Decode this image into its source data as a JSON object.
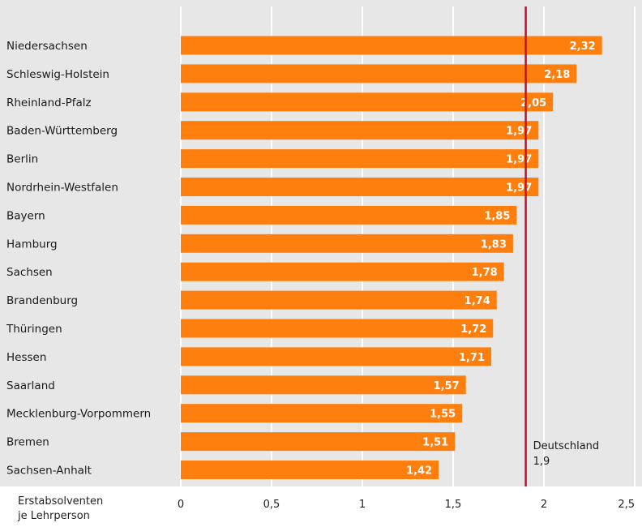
{
  "chart_data": {
    "type": "bar",
    "orientation": "horizontal",
    "categories": [
      "Niedersachsen",
      "Schleswig-Holstein",
      "Rheinland-Pfalz",
      "Baden-Württemberg",
      "Berlin",
      "Nordrhein-Westfalen",
      "Bayern",
      "Hamburg",
      "Sachsen",
      "Brandenburg",
      "Thüringen",
      "Hessen",
      "Saarland",
      "Mecklenburg-Vorpommern",
      "Bremen",
      "Sachsen-Anhalt"
    ],
    "values": [
      2.32,
      2.18,
      2.05,
      1.97,
      1.97,
      1.97,
      1.85,
      1.83,
      1.78,
      1.74,
      1.72,
      1.71,
      1.57,
      1.55,
      1.51,
      1.42
    ],
    "value_labels": [
      "2,32",
      "2,18",
      "2,05",
      "1,97",
      "1,97",
      "1,97",
      "1,85",
      "1,83",
      "1,78",
      "1,74",
      "1,72",
      "1,71",
      "1,57",
      "1,55",
      "1,51",
      "1,42"
    ],
    "xlim": [
      0,
      2.5
    ],
    "xticks": [
      0,
      0.5,
      1,
      1.5,
      2,
      2.5
    ],
    "xtick_labels": [
      "0",
      "0,5",
      "1",
      "1,5",
      "2",
      "2,5"
    ],
    "xlabel_lines": [
      "Erstabsolventen",
      "je Lehrperson"
    ],
    "reference": {
      "label_lines": [
        "Deutschland",
        "1,9"
      ],
      "value": 1.9,
      "color": "#c8102e"
    },
    "colors": {
      "bar": "#ff7f0e",
      "background": "#e7e7e7",
      "gridline": "#ffffff",
      "value_label": "#ffffff"
    },
    "grid": true
  }
}
